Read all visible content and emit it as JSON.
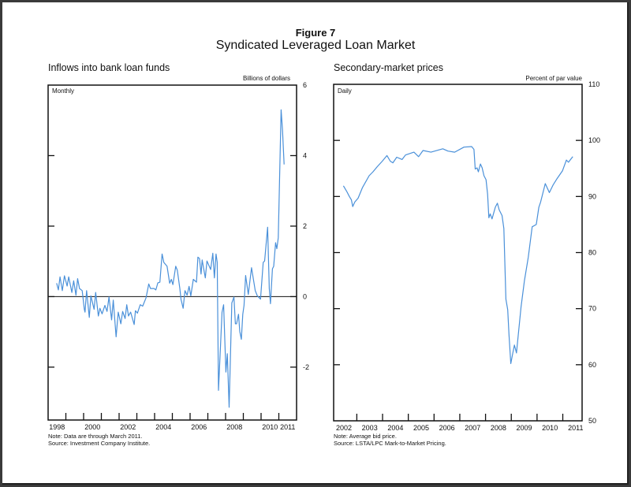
{
  "figure": {
    "number": "Figure 7",
    "title": "Syndicated Leveraged Loan Market"
  },
  "chart_data": [
    {
      "type": "line",
      "title": "Inflows into bank loan funds",
      "ylabel": "Billions of dollars",
      "frequency": "Monthly",
      "xlim": [
        1998,
        2012
      ],
      "ylim": [
        -3.5,
        6
      ],
      "x_tick_labels": [
        {
          "label": "1998",
          "at": 1998.5
        },
        {
          "label": "2000",
          "at": 2000.5
        },
        {
          "label": "2002",
          "at": 2002.5
        },
        {
          "label": "2004",
          "at": 2004.5
        },
        {
          "label": "2006",
          "at": 2006.5
        },
        {
          "label": "2008",
          "at": 2008.5
        },
        {
          "label": "2010",
          "at": 2010.5
        },
        {
          "label": "2011",
          "at": 2011.5
        }
      ],
      "x_ticks": [
        1999,
        2000,
        2001,
        2002,
        2003,
        2004,
        2005,
        2006,
        2007,
        2008,
        2009,
        2010,
        2011
      ],
      "y_ticks": [
        6,
        4,
        2,
        0,
        -2
      ],
      "zero_line": true,
      "line_color": "#4a90d9",
      "note": "Note: Data are through March 2011.",
      "source": "Source: Investment Company Institute.",
      "series": [
        {
          "name": "Inflows",
          "x": [
            1998.48,
            1998.58,
            1998.67,
            1998.8,
            1998.92,
            1999.07,
            1999.16,
            1999.34,
            1999.44,
            1999.57,
            1999.66,
            1999.77,
            1999.92,
            2000.04,
            2000.08,
            2000.17,
            2000.32,
            2000.41,
            2000.59,
            2000.68,
            2000.83,
            2000.92,
            2001.04,
            2001.2,
            2001.32,
            2001.43,
            2001.58,
            2001.67,
            2001.83,
            2001.95,
            2002.1,
            2002.2,
            2002.34,
            2002.43,
            2002.53,
            2002.65,
            2002.85,
            2002.92,
            2003.03,
            2003.19,
            2003.33,
            2003.52,
            2003.67,
            2003.77,
            2003.97,
            2004.07,
            2004.18,
            2004.3,
            2004.42,
            2004.52,
            2004.7,
            2004.85,
            2004.94,
            2005.03,
            2005.19,
            2005.28,
            2005.42,
            2005.49,
            2005.61,
            2005.71,
            2005.83,
            2005.94,
            2006.04,
            2006.18,
            2006.36,
            2006.44,
            2006.53,
            2006.62,
            2006.68,
            2006.86,
            2006.95,
            2007.16,
            2007.28,
            2007.37,
            2007.46,
            2007.53,
            2007.6,
            2007.8,
            2007.89,
            2008.02,
            2008.1,
            2008.2,
            2008.35,
            2008.47,
            2008.55,
            2008.62,
            2008.73,
            2008.8,
            2008.89,
            2008.97,
            2009.04,
            2009.13,
            2009.28,
            2009.46,
            2009.67,
            2009.79,
            2009.97,
            2010.12,
            2010.2,
            2010.37,
            2010.46,
            2010.53,
            2010.64,
            2010.71,
            2010.82,
            2010.89,
            2010.97,
            2011.13,
            2011.21,
            2011.3
          ],
          "y": [
            0.38,
            0.19,
            0.56,
            0.17,
            0.59,
            0.3,
            0.56,
            0.12,
            0.45,
            0.04,
            0.51,
            0.23,
            0.17,
            -0.36,
            -0.44,
            0.17,
            -0.59,
            0.02,
            -0.36,
            0.12,
            -0.55,
            -0.33,
            -0.49,
            -0.25,
            -0.42,
            -0.01,
            -0.66,
            -0.1,
            -1.14,
            -0.44,
            -0.77,
            -0.42,
            -0.62,
            -0.23,
            -0.55,
            -0.44,
            -0.79,
            -0.4,
            -0.47,
            -0.23,
            -0.27,
            -0.03,
            0.36,
            0.23,
            0.23,
            0.19,
            0.39,
            0.41,
            1.21,
            0.97,
            0.86,
            0.38,
            0.49,
            0.34,
            0.86,
            0.75,
            0.23,
            -0.08,
            -0.33,
            0.17,
            0.04,
            0.29,
            0.02,
            0.49,
            0.41,
            1.12,
            1.08,
            0.64,
            1.04,
            0.53,
            1.01,
            0.77,
            1.23,
            0.53,
            1.21,
            0.97,
            -2.66,
            -0.44,
            -0.23,
            -2.14,
            -1.62,
            -3.14,
            -0.18,
            -0.01,
            -0.77,
            -0.77,
            -0.5,
            -0.99,
            -1.21,
            -0.5,
            -0.25,
            0.6,
            0.06,
            0.82,
            0.17,
            0.02,
            -0.07,
            0.97,
            1.01,
            1.97,
            0.23,
            -0.2,
            0.79,
            0.86,
            1.53,
            1.36,
            1.67,
            5.3,
            4.71,
            3.75
          ]
        }
      ]
    },
    {
      "type": "line",
      "title": "Secondary-market prices",
      "ylabel": "Percent of par value",
      "frequency": "Daily",
      "xlim": [
        2002.1,
        2011.75
      ],
      "ylim": [
        50,
        110
      ],
      "x_tick_labels": [
        {
          "label": "2002",
          "at": 2002.5
        },
        {
          "label": "2003",
          "at": 2003.5
        },
        {
          "label": "2004",
          "at": 2004.5
        },
        {
          "label": "2005",
          "at": 2005.5
        },
        {
          "label": "2006",
          "at": 2006.5
        },
        {
          "label": "2007",
          "at": 2007.5
        },
        {
          "label": "2008",
          "at": 2008.5
        },
        {
          "label": "2009",
          "at": 2009.5
        },
        {
          "label": "2010",
          "at": 2010.5
        },
        {
          "label": "2011",
          "at": 2011.5
        }
      ],
      "x_ticks": [
        2003,
        2004,
        2005,
        2006,
        2007,
        2008,
        2009,
        2010,
        2011
      ],
      "y_ticks": [
        110,
        100,
        90,
        80,
        70,
        60,
        50
      ],
      "zero_line": false,
      "line_color": "#4a90d9",
      "note": "Note: Average bid price.",
      "source": "Source: LSTA/LPC Mark-to-Market Pricing.",
      "series": [
        {
          "name": "Average bid price",
          "x": [
            2002.48,
            2002.61,
            2002.71,
            2002.79,
            2002.84,
            2002.92,
            2003.05,
            2003.22,
            2003.48,
            2003.63,
            2003.79,
            2003.99,
            2004.17,
            2004.3,
            2004.4,
            2004.55,
            2004.76,
            2004.89,
            2005.22,
            2005.4,
            2005.57,
            2005.88,
            2006.34,
            2006.54,
            2006.8,
            2007.16,
            2007.46,
            2007.55,
            2007.6,
            2007.67,
            2007.72,
            2007.8,
            2007.87,
            2007.94,
            2008.02,
            2008.08,
            2008.13,
            2008.18,
            2008.25,
            2008.38,
            2008.46,
            2008.53,
            2008.64,
            2008.71,
            2008.79,
            2008.86,
            2008.91,
            2008.98,
            2009.05,
            2009.12,
            2009.2,
            2009.38,
            2009.51,
            2009.66,
            2009.81,
            2009.97,
            2010.07,
            2010.14,
            2010.32,
            2010.48,
            2010.63,
            2010.78,
            2010.99,
            2011.14,
            2011.22,
            2011.39
          ],
          "y": [
            91.9,
            90.9,
            90.0,
            89.4,
            88.2,
            89.0,
            89.7,
            91.6,
            93.7,
            94.4,
            95.3,
            96.3,
            97.3,
            96.3,
            96.0,
            97.0,
            96.6,
            97.4,
            97.9,
            97.1,
            98.2,
            97.9,
            98.5,
            98.1,
            97.9,
            98.8,
            98.9,
            98.4,
            94.9,
            95.1,
            94.4,
            95.8,
            95.1,
            93.7,
            93.0,
            90.4,
            86.2,
            86.9,
            86.0,
            88.1,
            88.8,
            87.6,
            86.6,
            84.3,
            71.7,
            69.8,
            65.4,
            60.2,
            61.9,
            63.5,
            62.1,
            70.3,
            75.0,
            79.2,
            84.6,
            85.0,
            88.1,
            89.0,
            92.3,
            90.7,
            92.1,
            93.2,
            94.6,
            96.5,
            96.1,
            97.1
          ]
        }
      ]
    }
  ]
}
